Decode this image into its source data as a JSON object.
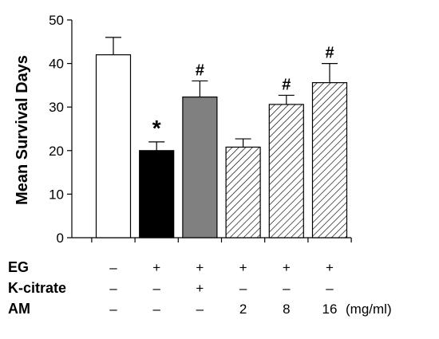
{
  "chart_data": {
    "type": "bar",
    "ylabel": "Mean Survival Days",
    "ylim": [
      0,
      50
    ],
    "yticks": [
      0,
      10,
      20,
      30,
      40,
      50
    ],
    "grid": false,
    "bars": [
      {
        "value": 42,
        "error": 4,
        "fill": "white",
        "sig": ""
      },
      {
        "value": 20,
        "error": 2,
        "fill": "black",
        "sig": "*"
      },
      {
        "value": 32.3,
        "error": 3.7,
        "fill": "gray",
        "sig": "#"
      },
      {
        "value": 20.8,
        "error": 1.9,
        "fill": "hatch",
        "sig": ""
      },
      {
        "value": 30.6,
        "error": 2.1,
        "fill": "hatch",
        "sig": "#"
      },
      {
        "value": 35.6,
        "error": 4.4,
        "fill": "hatch",
        "sig": "#"
      }
    ],
    "conditions": [
      {
        "label": "EG",
        "values": [
          "–",
          "+",
          "+",
          "+",
          "+",
          "+"
        ]
      },
      {
        "label": "K-citrate",
        "values": [
          "–",
          "–",
          "+",
          "–",
          "–",
          "–"
        ]
      },
      {
        "label": "AM",
        "values": [
          "–",
          "–",
          "–",
          "2",
          "8",
          "16"
        ]
      }
    ],
    "unit_note": "(mg/ml)",
    "colors": {
      "gray": "#808080",
      "black": "#000000",
      "white": "#ffffff"
    }
  }
}
